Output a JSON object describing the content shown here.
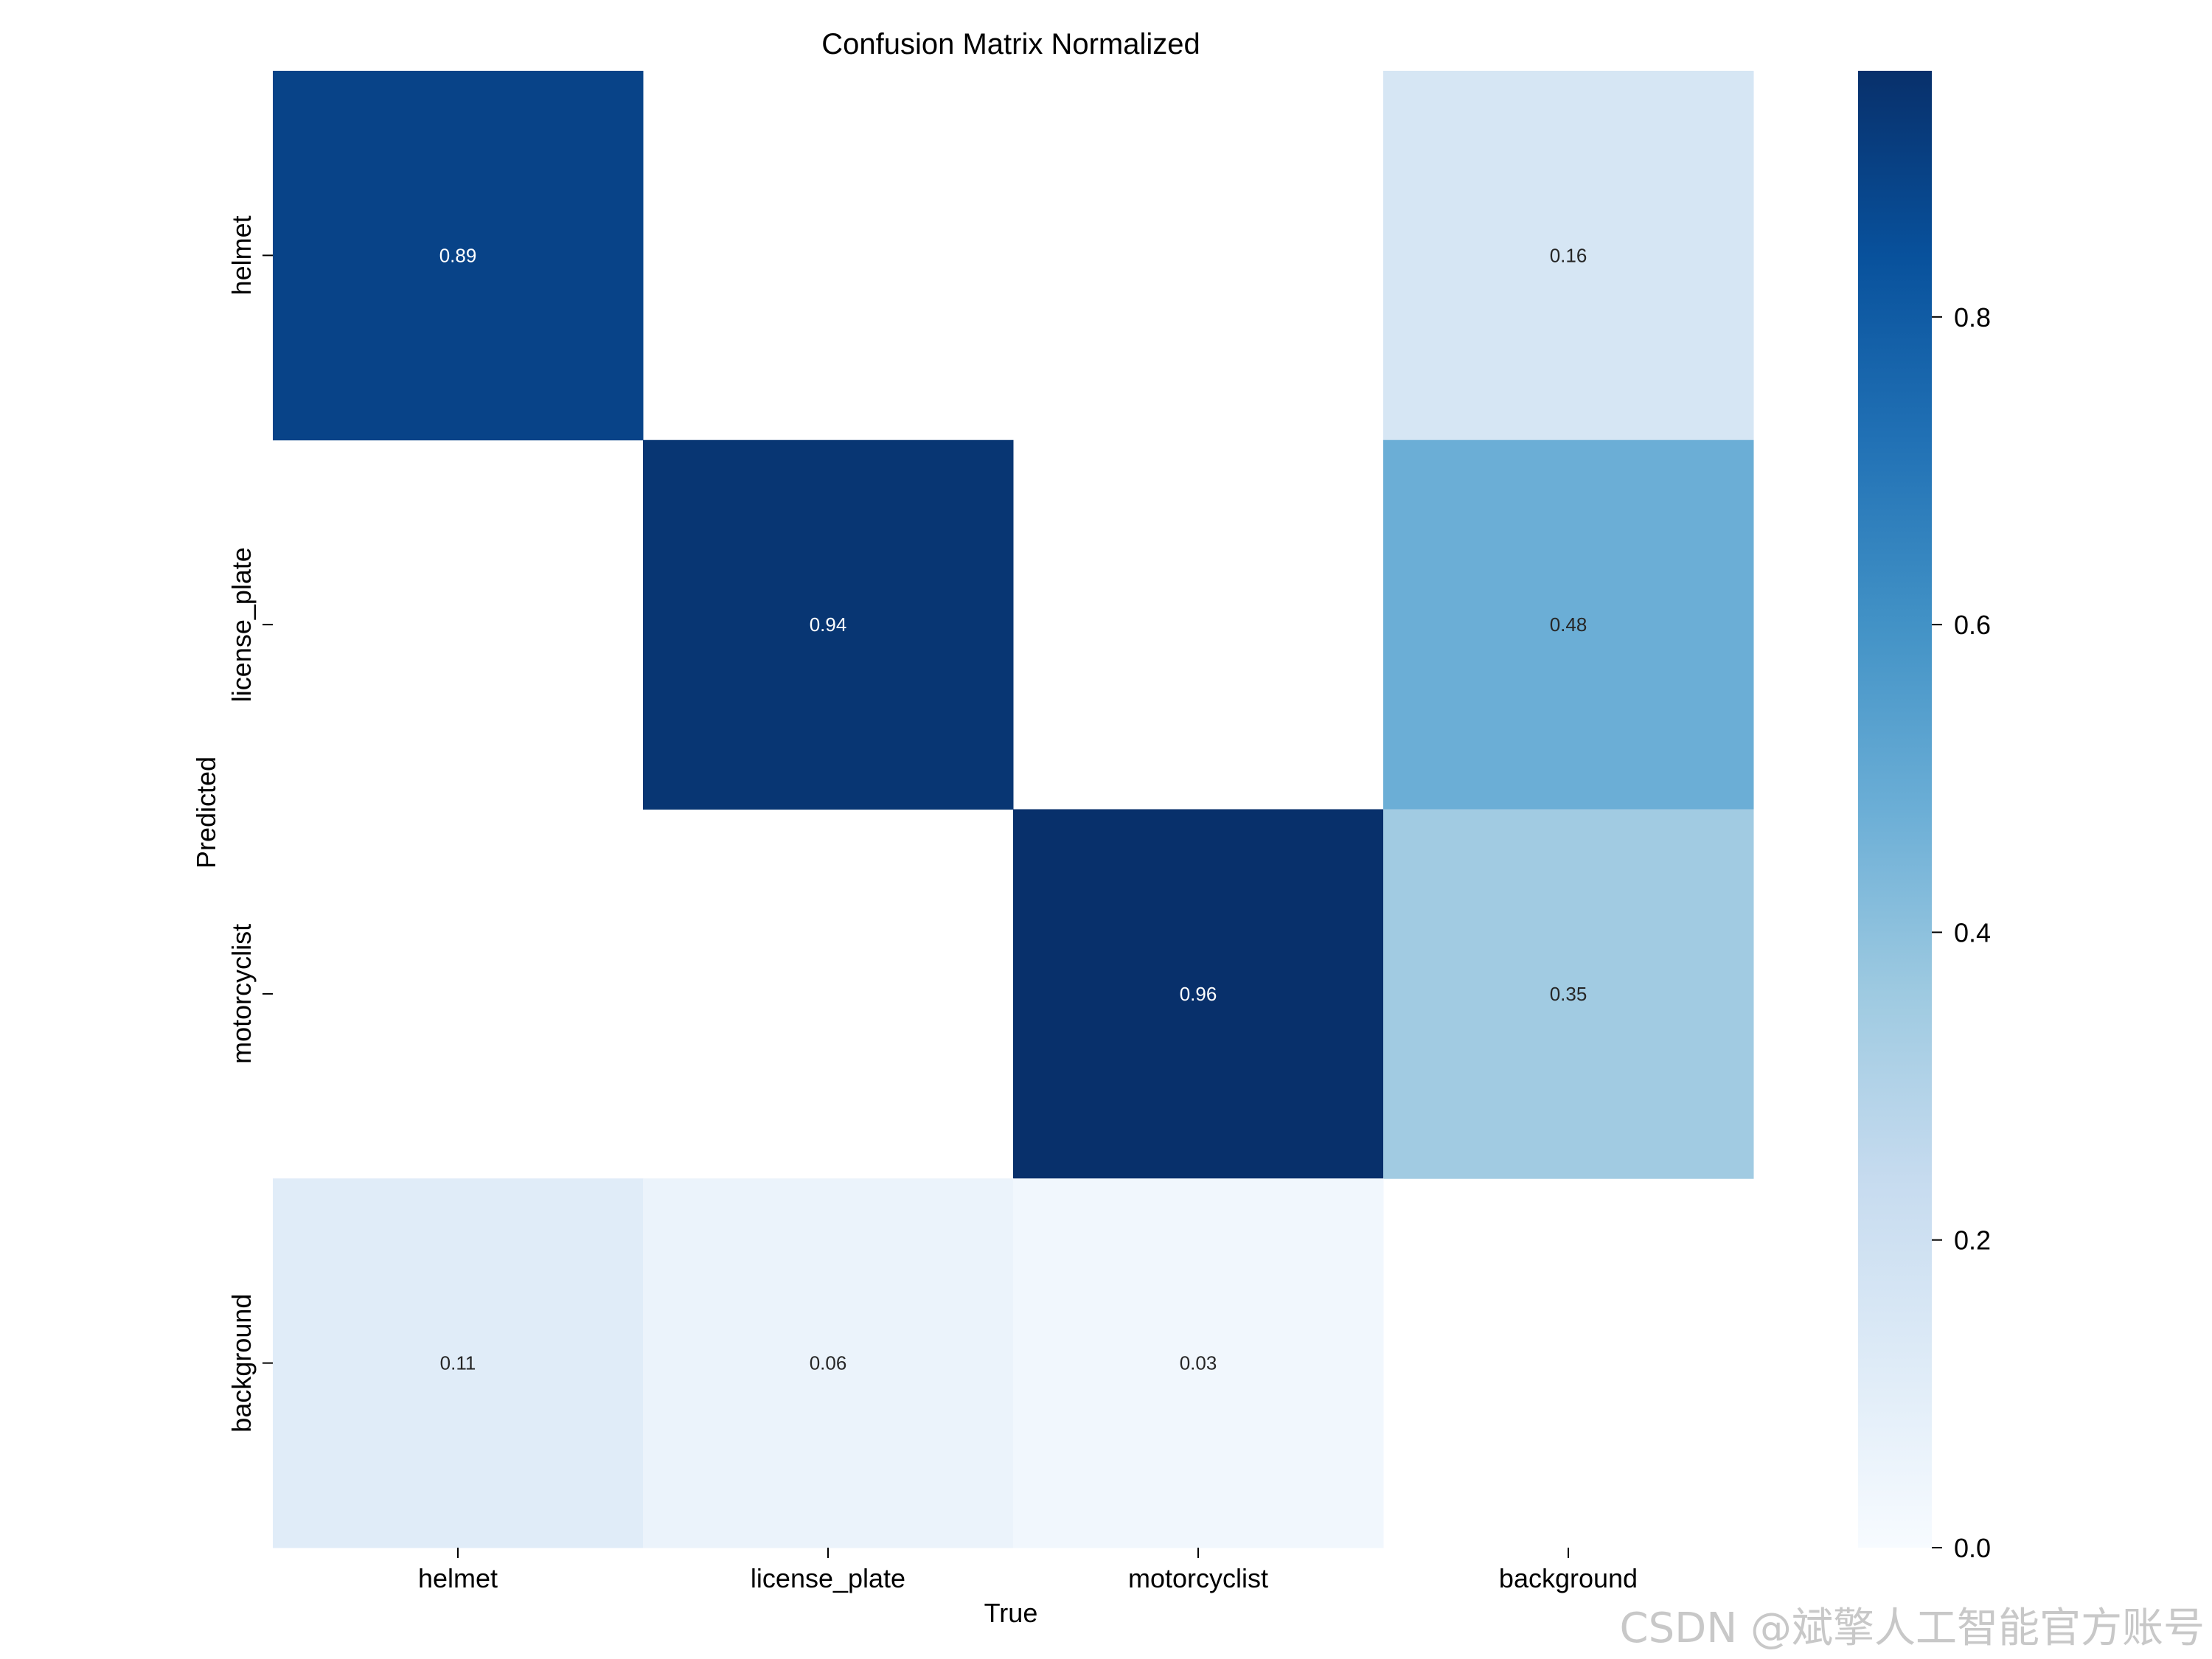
{
  "chart_data": {
    "type": "heatmap",
    "title": "Confusion Matrix Normalized",
    "xlabel": "True",
    "ylabel": "Predicted",
    "x_categories": [
      "helmet",
      "license_plate",
      "motorcyclist",
      "background"
    ],
    "y_categories": [
      "helmet",
      "license_plate",
      "motorcyclist",
      "background"
    ],
    "values": [
      [
        0.89,
        null,
        null,
        0.16
      ],
      [
        null,
        0.94,
        null,
        0.48
      ],
      [
        null,
        null,
        0.96,
        0.35
      ],
      [
        0.11,
        0.06,
        0.03,
        null
      ]
    ],
    "cell_labels": [
      [
        "0.89",
        "",
        "",
        "0.16"
      ],
      [
        "",
        "0.94",
        "",
        "0.48"
      ],
      [
        "",
        "",
        "0.96",
        "0.35"
      ],
      [
        "0.11",
        "0.06",
        "0.03",
        ""
      ]
    ],
    "colormap": "Blues",
    "colorbar": {
      "range": [
        0,
        0.96
      ],
      "ticks": [
        0.0,
        0.2,
        0.4,
        0.6,
        0.8
      ],
      "tick_labels": [
        "0.0",
        "0.2",
        "0.4",
        "0.6",
        "0.8"
      ]
    }
  },
  "watermark": "CSDN @斌擎人工智能官方账号"
}
